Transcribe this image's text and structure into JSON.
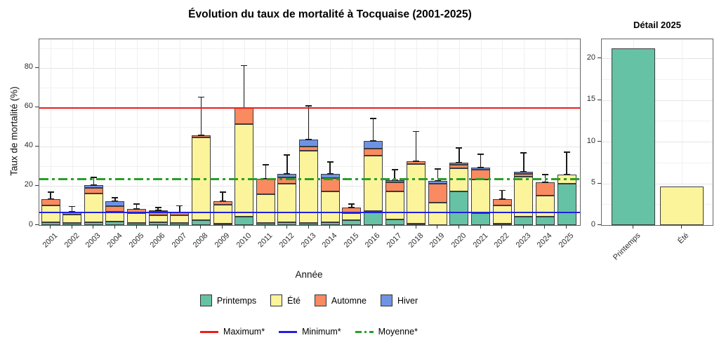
{
  "title": "Évolution du taux de mortalité à Tocquaise (2001-2025)",
  "chart_data": [
    {
      "type": "bar",
      "subtype": "stacked-with-errorbars",
      "title": "Évolution du taux de mortalité à Tocquaise (2001-2025)",
      "xlabel": "Année",
      "ylabel": "Taux de mortalité (%)",
      "ylim": [
        0,
        94.6
      ],
      "y_ticks": [
        0,
        20,
        40,
        60,
        80
      ],
      "y_minor_ticks": [
        10,
        30,
        50,
        70,
        90
      ],
      "grid": true,
      "legend_position": "bottom",
      "categories": [
        "2001",
        "2002",
        "2003",
        "2004",
        "2005",
        "2006",
        "2007",
        "2008",
        "2009",
        "2010",
        "2011",
        "2012",
        "2013",
        "2014",
        "2015",
        "2016",
        "2017",
        "2018",
        "2019",
        "2020",
        "2021",
        "2022",
        "2023",
        "2024",
        "2025"
      ],
      "series": [
        {
          "name": "Printemps",
          "color": "#66C2A5",
          "values": [
            1.5,
            1.2,
            1.4,
            1.7,
            1.2,
            1.4,
            1.0,
            2.5,
            0.8,
            4.2,
            1.0,
            1.5,
            1.0,
            1.5,
            2.4,
            7.1,
            3.0,
            0.8,
            0,
            17.3,
            6.0,
            0.8,
            4.2,
            4.2,
            21.2
          ]
        },
        {
          "name": "Été",
          "color": "#FCF49B",
          "values": [
            8.5,
            4.1,
            14.6,
            4.9,
            4.8,
            3.7,
            4.1,
            42.1,
            9.7,
            47.3,
            14.7,
            19.5,
            36.9,
            15.5,
            3.6,
            28.4,
            14.0,
            30.2,
            11.3,
            11.5,
            17.2,
            9.1,
            20.5,
            10.7,
            4.6
          ]
        },
        {
          "name": "Automne",
          "color": "#FA8A60",
          "values": [
            3.3,
            1.6,
            2.8,
            2.9,
            2.1,
            1.6,
            1.2,
            1.0,
            1.8,
            8.2,
            7.9,
            3.3,
            2.0,
            6.8,
            2.9,
            3.5,
            4.7,
            1.4,
            9.8,
            1.8,
            5.1,
            3.2,
            1.5,
            6.9,
            0
          ]
        },
        {
          "name": "Hiver",
          "color": "#6E93E6",
          "values": [
            0,
            0,
            1.4,
            2.8,
            0,
            0.7,
            0,
            0,
            0,
            0,
            0,
            1.7,
            3.6,
            2.2,
            0,
            3.8,
            1.3,
            0,
            1.5,
            1.3,
            1.0,
            0,
            1.0,
            0,
            0
          ]
        }
      ],
      "error_bar_tops": [
        17,
        9.8,
        24.5,
        14.3,
        11,
        9.3,
        10.1,
        65.5,
        17,
        81.5,
        31,
        36,
        61,
        32.5,
        11,
        54.5,
        28.5,
        48,
        28.8,
        39.5,
        36.3,
        18,
        37,
        26,
        37.5
      ],
      "ref_lines": [
        {
          "name": "Maximum*",
          "value": 59.7,
          "color": "#ED1C1C",
          "style": "solid"
        },
        {
          "name": "Minimum*",
          "value": 6.6,
          "color": "#2020DF",
          "style": "solid"
        },
        {
          "name": "Moyenne*",
          "value": 23.4,
          "color": "#28A028",
          "style": "dashdot"
        }
      ]
    },
    {
      "type": "bar",
      "title": "Détail 2025",
      "ylim": [
        0,
        22.3
      ],
      "y_ticks": [
        0,
        5,
        10,
        15,
        20
      ],
      "y_minor_ticks": [
        2.5,
        7.5,
        12.5,
        17.5
      ],
      "grid": true,
      "categories": [
        "Printemps",
        "Été"
      ],
      "values": [
        21.2,
        4.6
      ],
      "colors": [
        "#66C2A5",
        "#FCF49B"
      ]
    }
  ],
  "legend": {
    "seasons": [
      "Printemps",
      "Été",
      "Automne",
      "Hiver"
    ],
    "lines": [
      "Maximum*",
      "Minimum*",
      "Moyenne*"
    ]
  }
}
